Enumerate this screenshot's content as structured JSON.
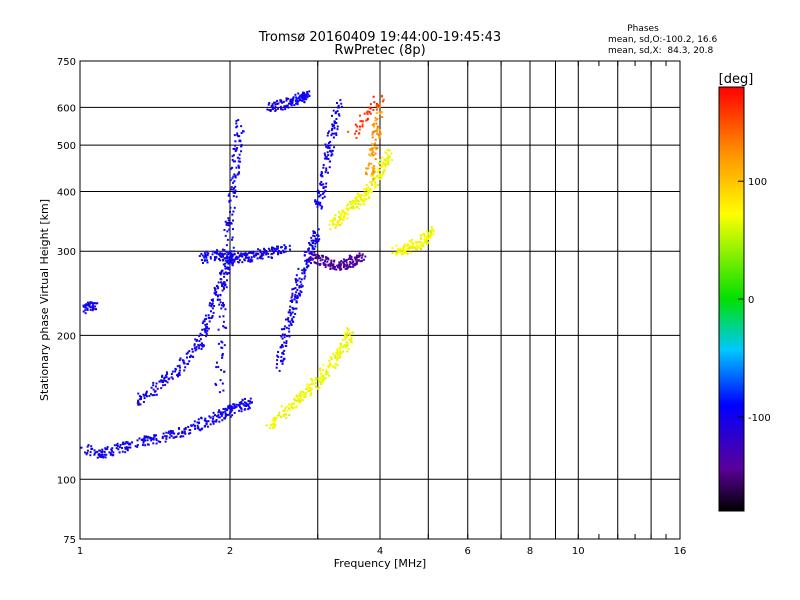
{
  "chart_data": {
    "type": "scatter",
    "title": "Tromsø 20160409 19:44:00-19:45:43",
    "subtitle": "RwPretec (8p)",
    "xlabel": "Frequency [MHz]",
    "ylabel": "Stationary phase Virtual Height [km]",
    "x_scale": "log",
    "y_scale": "log",
    "xlim": [
      1,
      16
    ],
    "ylim": [
      75,
      750
    ],
    "grid": true,
    "x_ticks": [
      1,
      2,
      4,
      6,
      8,
      10,
      16
    ],
    "x_tick_labels": [
      "1",
      "2",
      "4",
      "6",
      "8",
      "10",
      "16"
    ],
    "x_minor_ticks": [
      3,
      5,
      7,
      9,
      12,
      14
    ],
    "y_ticks": [
      75,
      100,
      200,
      300,
      400,
      500,
      600,
      750
    ],
    "y_tick_labels": [
      "75",
      "100",
      "200",
      "300",
      "400",
      "500",
      "600",
      "750"
    ],
    "phase_stats": {
      "heading": "Phases",
      "line_o": "mean, sd,O:-100.2, 16.6",
      "line_x": "mean, sd,X:  84.3, 20.8"
    },
    "colorbar": {
      "label": "[deg]",
      "range": [
        -180,
        180
      ],
      "ticks": [
        100,
        0,
        -100
      ],
      "tick_labels": [
        "100",
        "0",
        "-100"
      ],
      "colormap": "rainbow (black-purple-blue-cyan-green-yellow-orange-red)"
    },
    "series": [
      {
        "color_deg": -100,
        "segments": [
          {
            "f": [
              1.02,
              1.12,
              1.25,
              1.4,
              1.6,
              1.8,
              1.95,
              2.05,
              2.2
            ],
            "h": [
              116,
              113,
              118,
              121,
              125,
              132,
              137,
              141,
              145
            ]
          },
          {
            "f": [
              1.3,
              1.45,
              1.6,
              1.75,
              1.85,
              1.95,
              2.05
            ],
            "h": [
              145,
              158,
              172,
              195,
              230,
              270,
              300
            ]
          },
          {
            "f": [
              1.75,
              1.9,
              2.05,
              2.2,
              2.4,
              2.6
            ],
            "h": [
              290,
              295,
              290,
              292,
              298,
              305
            ]
          },
          {
            "f": [
              1.9,
              1.95,
              2.0,
              2.05,
              2.1
            ],
            "h": [
              150,
              250,
              350,
              450,
              560
            ]
          },
          {
            "f": [
              2.5,
              2.6,
              2.7,
              2.8,
              2.9,
              3.0
            ],
            "h": [
              170,
              205,
              240,
              270,
              300,
              330
            ]
          },
          {
            "f": [
              3.0,
              3.1,
              3.2,
              3.3
            ],
            "h": [
              370,
              430,
              520,
              610
            ]
          },
          {
            "f": [
              2.4,
              2.6,
              2.75,
              2.85
            ],
            "h": [
              600,
              610,
              625,
              638
            ]
          },
          {
            "f": [
              1.03,
              1.07
            ],
            "h": [
              228,
              232
            ]
          }
        ]
      },
      {
        "color_deg": -140,
        "segments": [
          {
            "f": [
              2.9,
              3.1,
              3.3,
              3.5,
              3.7
            ],
            "h": [
              292,
              285,
              280,
              285,
              292
            ]
          }
        ]
      },
      {
        "color_deg": 70,
        "segments": [
          {
            "f": [
              2.4,
              2.6,
              2.8,
              3.0,
              3.2,
              3.4,
              3.5
            ],
            "h": [
              130,
              140,
              150,
              160,
              175,
              190,
              205
            ]
          },
          {
            "f": [
              3.2,
              3.4,
              3.6,
              3.8,
              4.0,
              4.2
            ],
            "h": [
              340,
              360,
              380,
              400,
              440,
              480
            ]
          },
          {
            "f": [
              4.3,
              4.6,
              4.9,
              5.1
            ],
            "h": [
              300,
              305,
              315,
              330
            ]
          }
        ]
      },
      {
        "color_deg": 120,
        "segments": [
          {
            "f": [
              3.8,
              3.9,
              4.0
            ],
            "h": [
              430,
              500,
              600
            ]
          }
        ]
      },
      {
        "color_deg": 160,
        "segments": [
          {
            "f": [
              3.5,
              4.0
            ],
            "h": [
              520,
              630
            ]
          }
        ]
      }
    ]
  }
}
